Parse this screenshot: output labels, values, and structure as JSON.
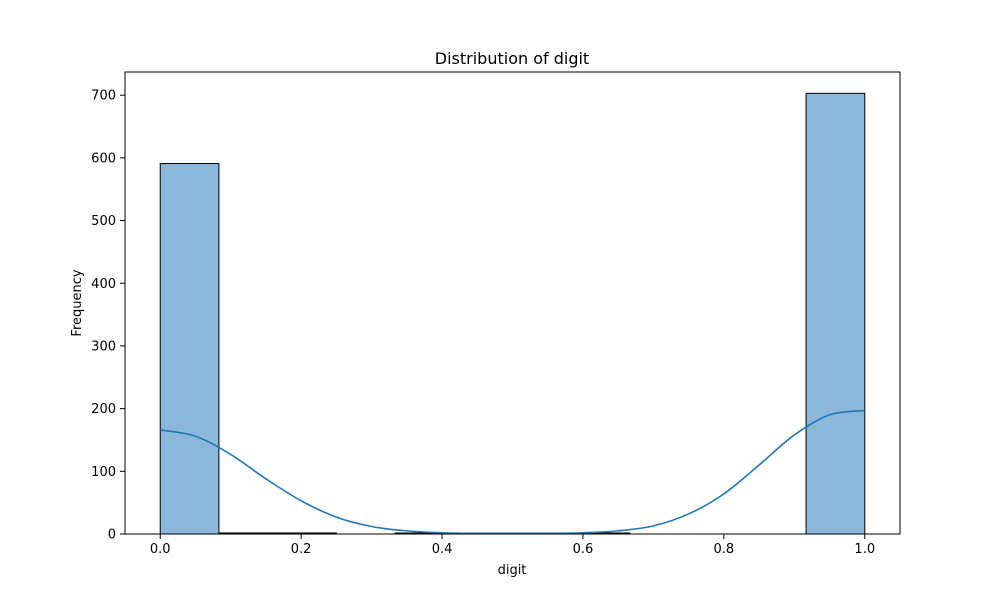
{
  "chart_data": {
    "type": "bar",
    "title": "Distribution of digit",
    "xlabel": "digit",
    "ylabel": "Frequency",
    "xlim": [
      -0.05,
      1.05
    ],
    "ylim": [
      0,
      737
    ],
    "x_ticks": [
      0.0,
      0.2,
      0.4,
      0.6,
      0.8,
      1.0
    ],
    "x_tick_labels": [
      "0.0",
      "0.2",
      "0.4",
      "0.6",
      "0.8",
      "1.0"
    ],
    "y_ticks": [
      0,
      100,
      200,
      300,
      400,
      500,
      600,
      700
    ],
    "y_tick_labels": [
      "0",
      "100",
      "200",
      "300",
      "400",
      "500",
      "600",
      "700"
    ],
    "grid": false,
    "legend": "none",
    "bins": [
      {
        "x0": 0.0,
        "x1": 0.0833,
        "count": 591
      },
      {
        "x0": 0.0833,
        "x1": 0.1667,
        "count": 1
      },
      {
        "x0": 0.1667,
        "x1": 0.25,
        "count": 1
      },
      {
        "x0": 0.25,
        "x1": 0.3333,
        "count": 0
      },
      {
        "x0": 0.3333,
        "x1": 0.4167,
        "count": 1
      },
      {
        "x0": 0.4167,
        "x1": 0.5,
        "count": 1
      },
      {
        "x0": 0.5,
        "x1": 0.5833,
        "count": 1
      },
      {
        "x0": 0.5833,
        "x1": 0.6667,
        "count": 1
      },
      {
        "x0": 0.6667,
        "x1": 0.75,
        "count": 0
      },
      {
        "x0": 0.75,
        "x1": 0.8333,
        "count": 0
      },
      {
        "x0": 0.8333,
        "x1": 0.9167,
        "count": 0
      },
      {
        "x0": 0.9167,
        "x1": 1.0,
        "count": 703
      }
    ],
    "kde": {
      "x": [
        0.0,
        0.05,
        0.1,
        0.15,
        0.2,
        0.25,
        0.3,
        0.35,
        0.4,
        0.45,
        0.5,
        0.55,
        0.6,
        0.65,
        0.7,
        0.75,
        0.8,
        0.85,
        0.9,
        0.95,
        1.0
      ],
      "y": [
        166,
        156,
        127,
        88,
        53,
        27,
        12,
        5,
        2,
        1,
        1,
        1,
        2,
        5,
        13,
        32,
        64,
        110,
        158,
        190,
        197
      ]
    },
    "colors": {
      "bar_fill": "#8bb8da",
      "bar_edge": "#000000",
      "kde_line": "#1f77b4"
    }
  }
}
